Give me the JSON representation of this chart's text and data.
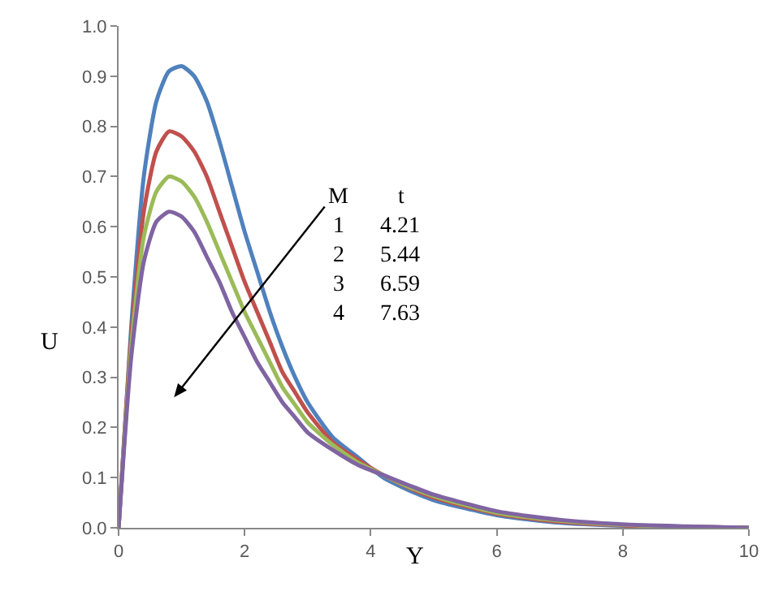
{
  "chart_data": {
    "type": "line",
    "xlabel": "Y",
    "ylabel": "U",
    "x": [
      0,
      0.2,
      0.4,
      0.6,
      0.8,
      1.0,
      1.2,
      1.4,
      1.6,
      1.8,
      2.0,
      2.2,
      2.4,
      2.6,
      2.8,
      3.0,
      3.4,
      3.8,
      4.2,
      4.6,
      5,
      6,
      7,
      8,
      9,
      10
    ],
    "series": [
      {
        "color": "#4f81bd",
        "values": [
          0,
          0.4,
          0.7,
          0.85,
          0.91,
          0.92,
          0.9,
          0.85,
          0.77,
          0.68,
          0.59,
          0.51,
          0.43,
          0.36,
          0.3,
          0.25,
          0.18,
          0.14,
          0.1,
          0.075,
          0.055,
          0.025,
          0.01,
          0.004,
          0.002,
          0
        ]
      },
      {
        "color": "#c0504d",
        "values": [
          0,
          0.38,
          0.63,
          0.75,
          0.79,
          0.78,
          0.75,
          0.7,
          0.63,
          0.56,
          0.49,
          0.43,
          0.37,
          0.31,
          0.27,
          0.23,
          0.17,
          0.135,
          0.105,
          0.08,
          0.06,
          0.028,
          0.012,
          0.005,
          0.002,
          0
        ]
      },
      {
        "color": "#9bbb59",
        "values": [
          0,
          0.36,
          0.58,
          0.67,
          0.7,
          0.69,
          0.66,
          0.61,
          0.55,
          0.49,
          0.43,
          0.38,
          0.33,
          0.28,
          0.245,
          0.21,
          0.165,
          0.13,
          0.105,
          0.082,
          0.063,
          0.03,
          0.014,
          0.006,
          0.002,
          0
        ]
      },
      {
        "color": "#8064a2",
        "values": [
          0,
          0.34,
          0.53,
          0.61,
          0.63,
          0.62,
          0.59,
          0.54,
          0.49,
          0.43,
          0.38,
          0.33,
          0.29,
          0.25,
          0.22,
          0.19,
          0.155,
          0.125,
          0.105,
          0.085,
          0.066,
          0.033,
          0.016,
          0.007,
          0.003,
          0
        ]
      }
    ],
    "annotations": [
      "M",
      "t",
      "1",
      "4.21",
      "2",
      "5.44",
      "3",
      "6.59",
      "4",
      "7.63"
    ],
    "xlim": [
      0,
      10
    ],
    "xticks": [
      0,
      2,
      4,
      6,
      8,
      10
    ],
    "ylim": [
      0,
      1.0
    ],
    "yticks": [
      {
        "value": 0,
        "label": "0.0"
      },
      {
        "value": 0.1,
        "label": "0.1"
      },
      {
        "value": 0.2,
        "label": "0.2"
      },
      {
        "value": 0.3,
        "label": "0.3"
      },
      {
        "value": 0.4,
        "label": "0.4"
      },
      {
        "value": 0.5,
        "label": "0.5"
      },
      {
        "value": 0.6,
        "label": "0.6"
      },
      {
        "value": 0.7,
        "label": "0.7"
      },
      {
        "value": 0.8,
        "label": "0.8"
      },
      {
        "value": 0.9,
        "label": "0.9"
      },
      {
        "value": 1.0,
        "label": "1.0"
      }
    ],
    "grid": false,
    "marker": "none",
    "line_style": "solid"
  }
}
